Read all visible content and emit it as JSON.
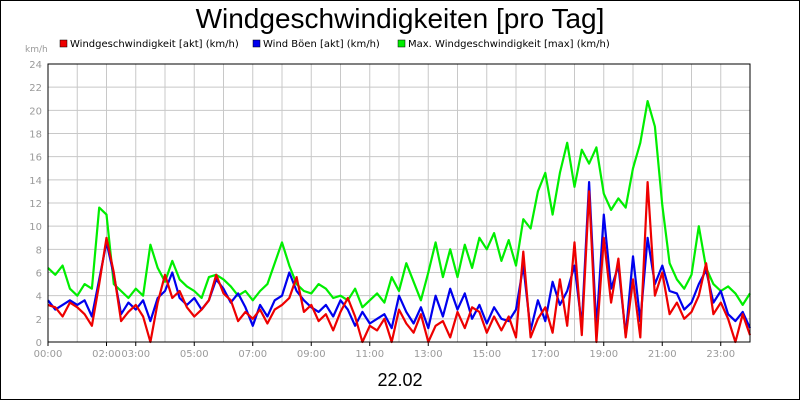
{
  "chart_data": {
    "type": "line",
    "title": "Windgeschwindigkeiten [pro Tag]",
    "subtitle": "22.02",
    "ylabel": "km/h",
    "ylim": [
      0,
      24
    ],
    "yticks": [
      "0",
      "2",
      "4",
      "6",
      "8",
      "10",
      "12",
      "14",
      "16",
      "18",
      "20",
      "22",
      "24"
    ],
    "xlim": [
      0,
      24
    ],
    "xticks": [
      {
        "x": 0,
        "label": "00:00"
      },
      {
        "x": 2,
        "label": "02:00"
      },
      {
        "x": 3,
        "label": "03:00"
      },
      {
        "x": 5,
        "label": "05:00"
      },
      {
        "x": 7,
        "label": "07:00"
      },
      {
        "x": 9,
        "label": "09:00"
      },
      {
        "x": 11,
        "label": "11:00"
      },
      {
        "x": 13,
        "label": "13:00"
      },
      {
        "x": 15,
        "label": "15:00"
      },
      {
        "x": 17,
        "label": "17:00"
      },
      {
        "x": 19,
        "label": "19:00"
      },
      {
        "x": 21,
        "label": "21:00"
      },
      {
        "x": 23,
        "label": "23:00"
      }
    ],
    "grid": true,
    "legend_position": "top",
    "series": [
      {
        "name": "Windgeschwindigkeit [akt] (km/h)",
        "color": "#ee0000",
        "points": [
          [
            0,
            3.2
          ],
          [
            0.25,
            3
          ],
          [
            0.5,
            2.2
          ],
          [
            0.75,
            3.4
          ],
          [
            1,
            3
          ],
          [
            1.25,
            2.4
          ],
          [
            1.5,
            1.4
          ],
          [
            1.75,
            5
          ],
          [
            2,
            9
          ],
          [
            2.25,
            6
          ],
          [
            2.5,
            1.8
          ],
          [
            2.75,
            2.6
          ],
          [
            3,
            3.2
          ],
          [
            3.25,
            2.2
          ],
          [
            3.5,
            0
          ],
          [
            3.75,
            3.4
          ],
          [
            4,
            5.8
          ],
          [
            4.25,
            3.8
          ],
          [
            4.5,
            4.4
          ],
          [
            4.75,
            3
          ],
          [
            5,
            2.2
          ],
          [
            5.25,
            2.8
          ],
          [
            5.5,
            3.6
          ],
          [
            5.75,
            5.8
          ],
          [
            6,
            4.2
          ],
          [
            6.25,
            3.6
          ],
          [
            6.5,
            1.8
          ],
          [
            6.75,
            2.6
          ],
          [
            7,
            2
          ],
          [
            7.25,
            2.8
          ],
          [
            7.5,
            1.6
          ],
          [
            7.75,
            2.8
          ],
          [
            8,
            3.2
          ],
          [
            8.25,
            3.8
          ],
          [
            8.5,
            5.6
          ],
          [
            8.75,
            2.6
          ],
          [
            9,
            3.2
          ],
          [
            9.25,
            1.8
          ],
          [
            9.5,
            2.4
          ],
          [
            9.75,
            1
          ],
          [
            10,
            2.6
          ],
          [
            10.25,
            3.8
          ],
          [
            10.5,
            2.2
          ],
          [
            10.75,
            0
          ],
          [
            11,
            1.4
          ],
          [
            11.25,
            1
          ],
          [
            11.5,
            2
          ],
          [
            11.75,
            0
          ],
          [
            12,
            2.8
          ],
          [
            12.25,
            1.6
          ],
          [
            12.5,
            0.8
          ],
          [
            12.75,
            2.4
          ],
          [
            13,
            0
          ],
          [
            13.25,
            1.4
          ],
          [
            13.5,
            1.8
          ],
          [
            13.75,
            0.4
          ],
          [
            14,
            2.6
          ],
          [
            14.25,
            1.2
          ],
          [
            14.5,
            3
          ],
          [
            14.75,
            2.6
          ],
          [
            15,
            0.8
          ],
          [
            15.25,
            2.2
          ],
          [
            15.5,
            1
          ],
          [
            15.75,
            2.2
          ],
          [
            16,
            0.4
          ],
          [
            16.25,
            7.8
          ],
          [
            16.5,
            0.4
          ],
          [
            16.75,
            2
          ],
          [
            17,
            3
          ],
          [
            17.25,
            0.8
          ],
          [
            17.5,
            5.4
          ],
          [
            17.75,
            1.4
          ],
          [
            18,
            8.6
          ],
          [
            18.25,
            0.6
          ],
          [
            18.5,
            13
          ],
          [
            18.75,
            0
          ],
          [
            19,
            9
          ],
          [
            19.25,
            3.4
          ],
          [
            19.5,
            7.2
          ],
          [
            19.75,
            0.4
          ],
          [
            20,
            5.4
          ],
          [
            20.25,
            0.4
          ],
          [
            20.5,
            13.8
          ],
          [
            20.75,
            4
          ],
          [
            21,
            6
          ],
          [
            21.25,
            2.4
          ],
          [
            21.5,
            3.4
          ],
          [
            21.75,
            2
          ],
          [
            22,
            2.6
          ],
          [
            22.25,
            4
          ],
          [
            22.5,
            6.8
          ],
          [
            22.75,
            2.4
          ],
          [
            23,
            3.4
          ],
          [
            23.25,
            2
          ],
          [
            23.5,
            0
          ],
          [
            23.75,
            2.4
          ],
          [
            24,
            0.6
          ]
        ]
      },
      {
        "name": "Wind Böen [akt] (km/h)",
        "color": "#0000ee",
        "points": [
          [
            0,
            3.6
          ],
          [
            0.25,
            2.8
          ],
          [
            0.5,
            3.2
          ],
          [
            0.75,
            3.6
          ],
          [
            1,
            3.2
          ],
          [
            1.25,
            3.6
          ],
          [
            1.5,
            2.2
          ],
          [
            1.75,
            5.4
          ],
          [
            2,
            8.6
          ],
          [
            2.25,
            5.8
          ],
          [
            2.5,
            2.4
          ],
          [
            2.75,
            3.4
          ],
          [
            3,
            2.8
          ],
          [
            3.25,
            3.6
          ],
          [
            3.5,
            1.8
          ],
          [
            3.75,
            3.8
          ],
          [
            4,
            4.4
          ],
          [
            4.25,
            6
          ],
          [
            4.5,
            3.8
          ],
          [
            4.75,
            3.2
          ],
          [
            5,
            3.8
          ],
          [
            5.25,
            2.8
          ],
          [
            5.5,
            3.6
          ],
          [
            5.75,
            5.4
          ],
          [
            6,
            4.6
          ],
          [
            6.25,
            3.4
          ],
          [
            6.5,
            4.2
          ],
          [
            6.75,
            3
          ],
          [
            7,
            1.4
          ],
          [
            7.25,
            3.2
          ],
          [
            7.5,
            2.2
          ],
          [
            7.75,
            3.6
          ],
          [
            8,
            4
          ],
          [
            8.25,
            6
          ],
          [
            8.5,
            4.4
          ],
          [
            8.75,
            3.6
          ],
          [
            9,
            3
          ],
          [
            9.25,
            2.6
          ],
          [
            9.5,
            3.2
          ],
          [
            9.75,
            2.2
          ],
          [
            10,
            3.6
          ],
          [
            10.25,
            2.8
          ],
          [
            10.5,
            1.4
          ],
          [
            10.75,
            2.6
          ],
          [
            11,
            1.6
          ],
          [
            11.25,
            2
          ],
          [
            11.5,
            2.4
          ],
          [
            11.75,
            1.2
          ],
          [
            12,
            4
          ],
          [
            12.25,
            2.6
          ],
          [
            12.5,
            1.6
          ],
          [
            12.75,
            3
          ],
          [
            13,
            1.2
          ],
          [
            13.25,
            4
          ],
          [
            13.5,
            2.2
          ],
          [
            13.75,
            4.6
          ],
          [
            14,
            2.8
          ],
          [
            14.25,
            4.2
          ],
          [
            14.5,
            2
          ],
          [
            14.75,
            3.2
          ],
          [
            15,
            1.6
          ],
          [
            15.25,
            3
          ],
          [
            15.5,
            2
          ],
          [
            15.75,
            1.8
          ],
          [
            16,
            2.8
          ],
          [
            16.25,
            6.6
          ],
          [
            16.5,
            1
          ],
          [
            16.75,
            3.6
          ],
          [
            17,
            1.8
          ],
          [
            17.25,
            5.2
          ],
          [
            17.5,
            3.2
          ],
          [
            17.75,
            4.4
          ],
          [
            18,
            6.6
          ],
          [
            18.25,
            1.4
          ],
          [
            18.5,
            13.8
          ],
          [
            18.75,
            1.2
          ],
          [
            19,
            11
          ],
          [
            19.25,
            4.6
          ],
          [
            19.5,
            6.6
          ],
          [
            19.75,
            0.6
          ],
          [
            20,
            7.4
          ],
          [
            20.25,
            1.8
          ],
          [
            20.5,
            9
          ],
          [
            20.75,
            5
          ],
          [
            21,
            6.6
          ],
          [
            21.25,
            4.4
          ],
          [
            21.5,
            4.2
          ],
          [
            21.75,
            2.8
          ],
          [
            22,
            3.4
          ],
          [
            22.25,
            5
          ],
          [
            22.5,
            6.2
          ],
          [
            22.75,
            3.4
          ],
          [
            23,
            4.4
          ],
          [
            23.25,
            2.4
          ],
          [
            23.5,
            1.8
          ],
          [
            23.75,
            2.6
          ],
          [
            24,
            1.2
          ]
        ]
      },
      {
        "name": "Max. Windgeschwindigkeit [max] (km/h)",
        "color": "#00ee00",
        "points": [
          [
            0,
            6.4
          ],
          [
            0.25,
            5.8
          ],
          [
            0.5,
            6.6
          ],
          [
            0.75,
            4.6
          ],
          [
            1,
            4
          ],
          [
            1.25,
            5
          ],
          [
            1.5,
            4.6
          ],
          [
            1.75,
            11.6
          ],
          [
            2,
            11
          ],
          [
            2.25,
            5
          ],
          [
            2.5,
            4.4
          ],
          [
            2.75,
            3.8
          ],
          [
            3,
            4.6
          ],
          [
            3.25,
            4
          ],
          [
            3.5,
            8.4
          ],
          [
            3.75,
            6.4
          ],
          [
            4,
            5.2
          ],
          [
            4.25,
            7
          ],
          [
            4.5,
            5.4
          ],
          [
            4.75,
            4.8
          ],
          [
            5,
            4.4
          ],
          [
            5.25,
            3.8
          ],
          [
            5.5,
            5.6
          ],
          [
            5.75,
            5.8
          ],
          [
            6,
            5.4
          ],
          [
            6.25,
            4.8
          ],
          [
            6.5,
            4
          ],
          [
            6.75,
            4.4
          ],
          [
            7,
            3.6
          ],
          [
            7.25,
            4.4
          ],
          [
            7.5,
            5
          ],
          [
            7.75,
            6.8
          ],
          [
            8,
            8.6
          ],
          [
            8.25,
            6.6
          ],
          [
            8.5,
            5
          ],
          [
            8.75,
            4.4
          ],
          [
            9,
            4.2
          ],
          [
            9.25,
            5
          ],
          [
            9.5,
            4.6
          ],
          [
            9.75,
            3.8
          ],
          [
            10,
            4
          ],
          [
            10.25,
            3.6
          ],
          [
            10.5,
            4.6
          ],
          [
            10.75,
            3
          ],
          [
            11,
            3.6
          ],
          [
            11.25,
            4.2
          ],
          [
            11.5,
            3.4
          ],
          [
            11.75,
            5.6
          ],
          [
            12,
            4.4
          ],
          [
            12.25,
            6.8
          ],
          [
            12.75,
            3.6
          ],
          [
            13,
            6
          ],
          [
            13.25,
            8.6
          ],
          [
            13.5,
            5.6
          ],
          [
            13.75,
            8
          ],
          [
            14,
            5.6
          ],
          [
            14.25,
            8.4
          ],
          [
            14.5,
            6.4
          ],
          [
            14.75,
            9
          ],
          [
            15,
            8
          ],
          [
            15.25,
            9.4
          ],
          [
            15.5,
            7
          ],
          [
            15.75,
            8.8
          ],
          [
            16,
            6.6
          ],
          [
            16.25,
            10.6
          ],
          [
            16.5,
            9.8
          ],
          [
            16.75,
            13
          ],
          [
            17,
            14.6
          ],
          [
            17.25,
            11
          ],
          [
            17.5,
            14.6
          ],
          [
            17.75,
            17.2
          ],
          [
            18,
            13.4
          ],
          [
            18.25,
            16.6
          ],
          [
            18.5,
            15.4
          ],
          [
            18.75,
            16.8
          ],
          [
            19,
            12.8
          ],
          [
            19.25,
            11.4
          ],
          [
            19.5,
            12.4
          ],
          [
            19.75,
            11.6
          ],
          [
            20,
            15
          ],
          [
            20.25,
            17.2
          ],
          [
            20.5,
            20.8
          ],
          [
            20.75,
            18.6
          ],
          [
            21,
            11.8
          ],
          [
            21.25,
            6.8
          ],
          [
            21.5,
            5.4
          ],
          [
            21.75,
            4.6
          ],
          [
            22,
            5.8
          ],
          [
            22.25,
            10
          ],
          [
            22.5,
            6.4
          ],
          [
            22.75,
            5
          ],
          [
            23,
            4.4
          ],
          [
            23.25,
            4.8
          ],
          [
            23.5,
            4.2
          ],
          [
            23.75,
            3.2
          ],
          [
            24,
            4.2
          ]
        ]
      }
    ]
  }
}
